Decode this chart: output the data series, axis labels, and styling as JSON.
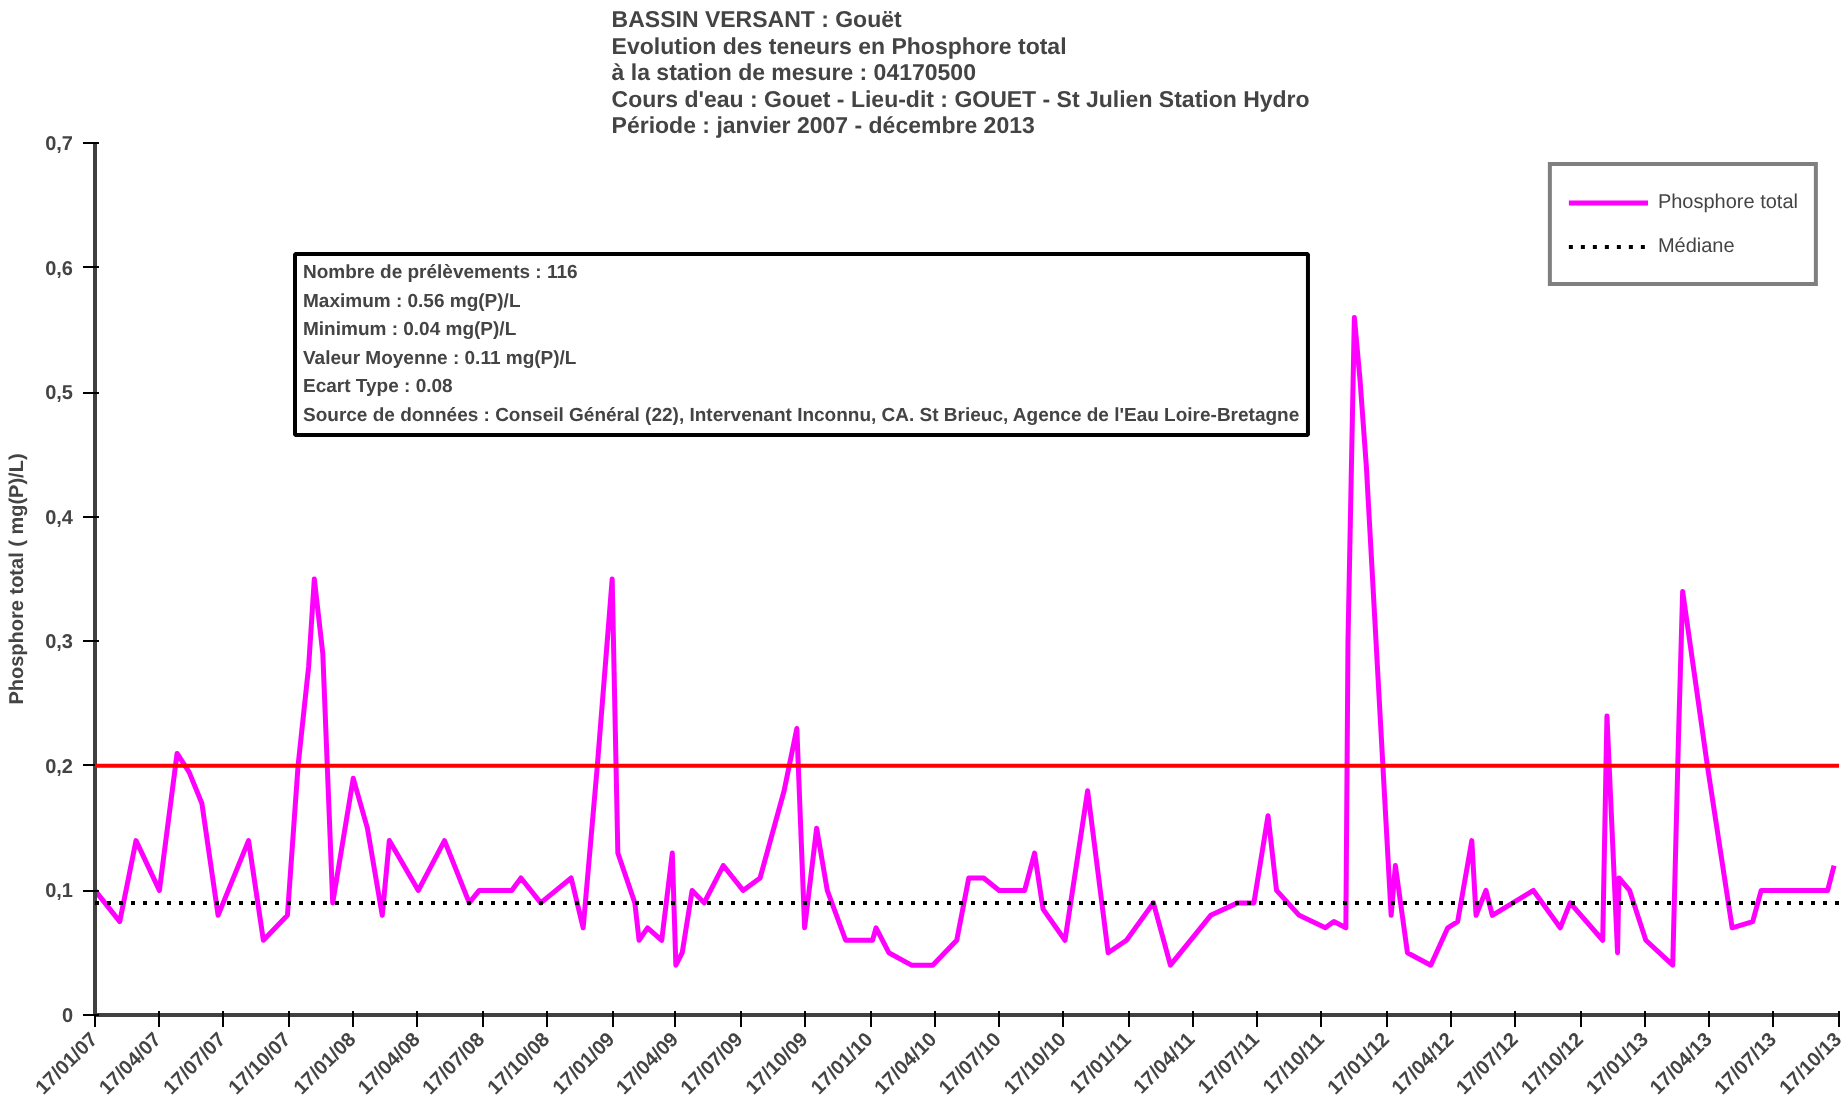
{
  "chart_data": {
    "type": "line",
    "title": "BASSIN VERSANT :  Gouët\nEvolution des teneurs en Phosphore total\nà la station de mesure : 04170500\nCours d'eau : Gouet  -  Lieu-dit : GOUET - St Julien Station Hydro\nPériode : janvier 2007 - décembre 2013",
    "ylabel": "Phosphore total ( mg(P)/L)",
    "annotations": [
      "Nombre de prélèvements : 116",
      "Maximum : 0.56 mg(P)/L",
      "Minimum : 0.04 mg(P)/L",
      " Valeur Moyenne : 0.11 mg(P)/L",
      " Ecart Type : 0.08",
      "Source de données : Conseil Général (22), Intervenant Inconnu, CA. St Brieuc, Agence de l'Eau Loire-Bretagne"
    ],
    "x": [
      "2007-01-17",
      "2007-02-21",
      "2007-03-16",
      "2007-04-18",
      "2007-05-13",
      "2007-05-30",
      "2007-06-17",
      "2007-07-10",
      "2007-08-22",
      "2007-09-12",
      "2007-10-16",
      "2007-10-31",
      "2007-11-15",
      "2007-11-23",
      "2007-12-05",
      "2007-12-19",
      "2008-01-17",
      "2008-02-06",
      "2008-02-27",
      "2008-03-08",
      "2008-04-18",
      "2008-05-25",
      "2008-06-29",
      "2008-07-13",
      "2008-08-28",
      "2008-09-10",
      "2008-10-08",
      "2008-11-20",
      "2008-12-07",
      "2008-12-27",
      "2009-01-17",
      "2009-01-25",
      "2009-02-18",
      "2009-02-24",
      "2009-03-08",
      "2009-03-28",
      "2009-04-12",
      "2009-04-17",
      "2009-04-26",
      "2009-05-10",
      "2009-05-27",
      "2009-06-23",
      "2009-07-21",
      "2009-08-14",
      "2009-09-17",
      "2009-10-05",
      "2009-10-16",
      "2009-11-02",
      "2009-11-17",
      "2009-12-13",
      "2010-01-20",
      "2010-01-25",
      "2010-02-12",
      "2010-03-16",
      "2010-04-15",
      "2010-05-19",
      "2010-06-05",
      "2010-06-26",
      "2010-07-18",
      "2010-08-23",
      "2010-09-06",
      "2010-09-18",
      "2010-10-19",
      "2010-11-20",
      "2010-12-19",
      "2011-01-14",
      "2011-02-21",
      "2011-03-17",
      "2011-05-13",
      "2011-06-20",
      "2011-07-13",
      "2011-08-02",
      "2011-08-14",
      "2011-09-15",
      "2011-10-22",
      "2011-11-03",
      "2011-11-20",
      "2011-11-23",
      "2011-12-02",
      "2011-12-10",
      "2011-12-19",
      "2012-01-23",
      "2012-01-29",
      "2012-02-15",
      "2012-03-19",
      "2012-04-12",
      "2012-04-26",
      "2012-05-16",
      "2012-05-22",
      "2012-06-05",
      "2012-06-14",
      "2012-07-13",
      "2012-08-11",
      "2012-09-18",
      "2012-10-02",
      "2012-11-17",
      "2012-11-23",
      "2012-12-08",
      "2012-12-10",
      "2012-12-25",
      "2013-01-17",
      "2013-02-24",
      "2013-03-04",
      "2013-03-10",
      "2013-04-14",
      "2013-05-19",
      "2013-06-17",
      "2013-06-29",
      "2013-10-01",
      "2013-10-10"
    ],
    "series": [
      {
        "name": "Phosphore total",
        "color": "#ff00ff",
        "values": [
          0.1,
          0.075,
          0.14,
          0.1,
          0.21,
          0.195,
          0.17,
          0.08,
          0.14,
          0.06,
          0.08,
          0.2,
          0.28,
          0.35,
          0.29,
          0.09,
          0.19,
          0.15,
          0.08,
          0.14,
          0.1,
          0.14,
          0.09,
          0.1,
          0.1,
          0.11,
          0.09,
          0.11,
          0.07,
          0.2,
          0.35,
          0.13,
          0.09,
          0.06,
          0.07,
          0.06,
          0.13,
          0.04,
          0.05,
          0.1,
          0.09,
          0.12,
          0.1,
          0.11,
          0.18,
          0.23,
          0.07,
          0.15,
          0.1,
          0.06,
          0.06,
          0.07,
          0.05,
          0.04,
          0.04,
          0.06,
          0.11,
          0.11,
          0.1,
          0.1,
          0.13,
          0.085,
          0.06,
          0.18,
          0.05,
          0.06,
          0.09,
          0.04,
          0.08,
          0.09,
          0.09,
          0.16,
          0.1,
          0.08,
          0.07,
          0.075,
          0.07,
          0.3,
          0.56,
          0.51,
          0.44,
          0.08,
          0.12,
          0.05,
          0.04,
          0.07,
          0.075,
          0.14,
          0.08,
          0.1,
          0.08,
          0.09,
          0.1,
          0.07,
          0.09,
          0.06,
          0.24,
          0.05,
          0.11,
          0.1,
          0.06,
          0.04,
          0.22,
          0.34,
          0.2,
          0.07,
          0.075,
          0.1,
          0.1,
          0.12
        ]
      }
    ],
    "ref_lines": [
      {
        "axis": "y",
        "value": 0.2,
        "color": "#ff0000",
        "line_style": "solid"
      },
      {
        "axis": "y",
        "value": 0.09,
        "label": "Médiane",
        "color": "#000000",
        "line_style": "dotted"
      }
    ],
    "xlim": [
      "2007-01-17",
      "2013-10-17"
    ],
    "xticks": [
      {
        "value": "2007-01-17",
        "label": "17/01/07"
      },
      {
        "value": "2007-04-17",
        "label": "17/04/07"
      },
      {
        "value": "2007-07-17",
        "label": "17/07/07"
      },
      {
        "value": "2007-10-17",
        "label": "17/10/07"
      },
      {
        "value": "2008-01-17",
        "label": "17/01/08"
      },
      {
        "value": "2008-04-17",
        "label": "17/04/08"
      },
      {
        "value": "2008-07-17",
        "label": "17/07/08"
      },
      {
        "value": "2008-10-17",
        "label": "17/10/08"
      },
      {
        "value": "2009-01-17",
        "label": "17/01/09"
      },
      {
        "value": "2009-04-17",
        "label": "17/04/09"
      },
      {
        "value": "2009-07-17",
        "label": "17/07/09"
      },
      {
        "value": "2009-10-17",
        "label": "17/10/09"
      },
      {
        "value": "2010-01-17",
        "label": "17/01/10"
      },
      {
        "value": "2010-04-17",
        "label": "17/04/10"
      },
      {
        "value": "2010-07-17",
        "label": "17/07/10"
      },
      {
        "value": "2010-10-17",
        "label": "17/10/10"
      },
      {
        "value": "2011-01-17",
        "label": "17/01/11"
      },
      {
        "value": "2011-04-17",
        "label": "17/04/11"
      },
      {
        "value": "2011-07-17",
        "label": "17/07/11"
      },
      {
        "value": "2011-10-17",
        "label": "17/10/11"
      },
      {
        "value": "2012-01-17",
        "label": "17/01/12"
      },
      {
        "value": "2012-04-17",
        "label": "17/04/12"
      },
      {
        "value": "2012-07-17",
        "label": "17/07/12"
      },
      {
        "value": "2012-10-17",
        "label": "17/10/12"
      },
      {
        "value": "2013-01-17",
        "label": "17/01/13"
      },
      {
        "value": "2013-04-17",
        "label": "17/04/13"
      },
      {
        "value": "2013-07-17",
        "label": "17/07/13"
      },
      {
        "value": "2013-10-17",
        "label": "17/10/13"
      }
    ],
    "ylim": [
      0,
      0.7
    ],
    "yticks": [
      0,
      {
        "value": 0.1,
        "label": "0,1"
      },
      {
        "value": 0.2,
        "label": "0,2"
      },
      {
        "value": 0.3,
        "label": "0,3"
      },
      {
        "value": 0.4,
        "label": "0,4"
      },
      {
        "value": 0.5,
        "label": "0,5"
      },
      {
        "value": 0.6,
        "label": "0,6"
      },
      {
        "value": 0.7,
        "label": "0,7"
      }
    ],
    "grid": false,
    "legend": "top right",
    "marker": "none",
    "line_style": "solid"
  }
}
